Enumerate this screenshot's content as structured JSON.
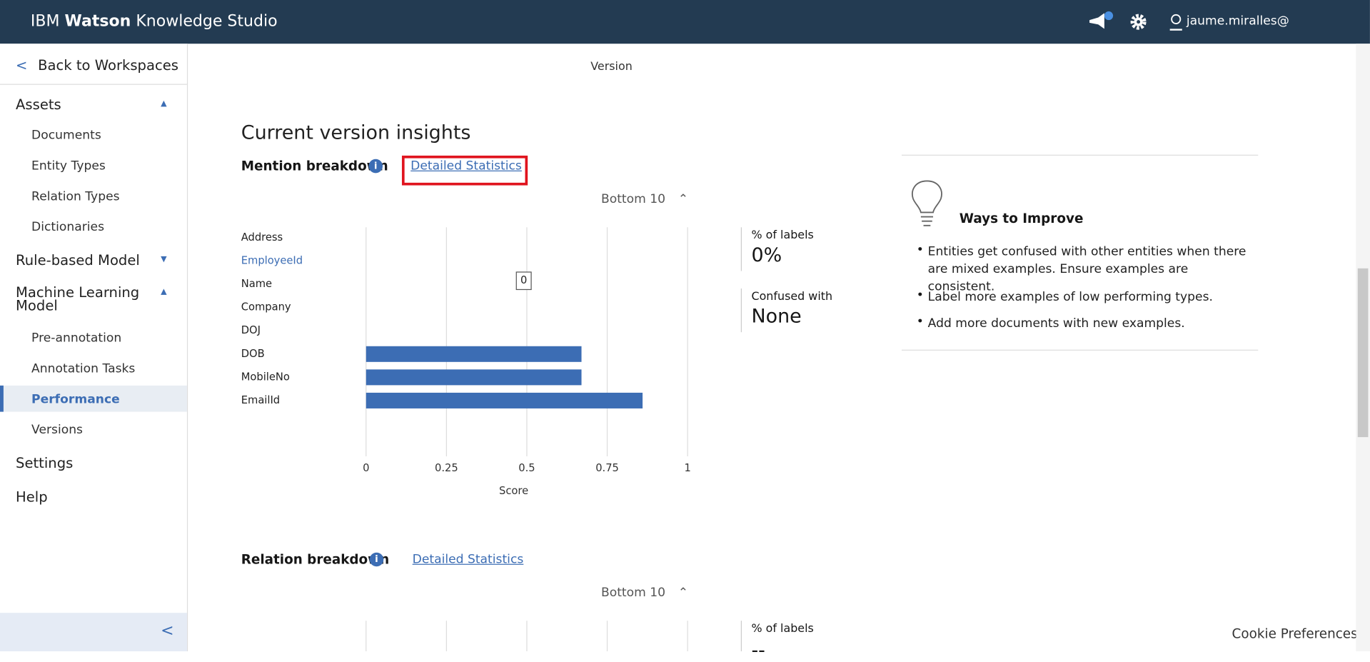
{
  "header": {
    "brand_prefix": "IBM",
    "brand_bold": "Watson",
    "brand_suffix": "Knowledge Studio",
    "user": "jaume.miralles@"
  },
  "sidebar": {
    "back": "Back to Workspaces",
    "sections": [
      {
        "title": "Assets",
        "expanded": true,
        "items": [
          {
            "label": "Documents"
          },
          {
            "label": "Entity Types"
          },
          {
            "label": "Relation Types"
          },
          {
            "label": "Dictionaries"
          }
        ]
      },
      {
        "title": "Rule-based Model",
        "expanded": false,
        "items": []
      },
      {
        "title": "Machine Learning Model",
        "expanded": true,
        "items": [
          {
            "label": "Pre-annotation"
          },
          {
            "label": "Annotation Tasks"
          },
          {
            "label": "Performance",
            "selected": true
          },
          {
            "label": "Versions"
          }
        ]
      },
      {
        "title": "Settings",
        "items": []
      },
      {
        "title": "Help",
        "items": []
      }
    ]
  },
  "main": {
    "version_label": "Version",
    "title": "Current version insights",
    "mention": {
      "heading": "Mention breakdown",
      "link": "Detailed Statistics",
      "toggle": "Bottom 10",
      "chart": {
        "type": "bar",
        "orientation": "horizontal",
        "categories": [
          "Address",
          "EmployeeId",
          "Name",
          "Company",
          "DOJ",
          "DOB",
          "MobileNo",
          "EmailId"
        ],
        "values": [
          0,
          0,
          0,
          0,
          0,
          0.67,
          0.67,
          0.86
        ],
        "color": "#3c6db4",
        "xlim": [
          0,
          1
        ],
        "xticks": [
          0,
          0.25,
          0.5,
          0.75,
          1
        ],
        "x_label": "Score",
        "grid": true,
        "highlight_index": 1,
        "tooltip_index": 2
      },
      "stats": [
        {
          "label": "% of labels",
          "value": "0%"
        },
        {
          "label": "Confused with",
          "value": "None"
        }
      ]
    },
    "tips": {
      "title": "Ways to Improve",
      "items": [
        "Entities get confused with other entities when there are mixed examples. Ensure examples are consistent.",
        "Label more examples of low performing types.",
        "Add more documents with new examples."
      ]
    },
    "relation": {
      "heading": "Relation breakdown",
      "link": "Detailed Statistics",
      "toggle": "Bottom 10",
      "stats_label": "% of labels",
      "stats_value": "--"
    }
  },
  "cookie": "Cookie Preferences"
}
